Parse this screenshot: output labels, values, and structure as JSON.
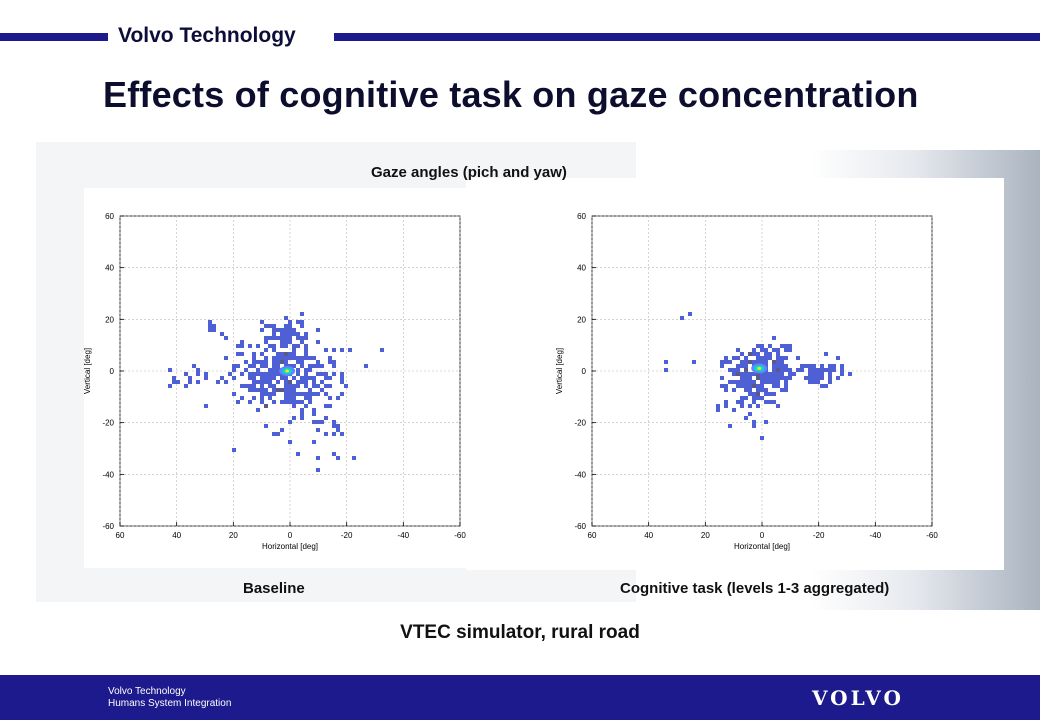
{
  "header": {
    "brand": "Volvo Technology"
  },
  "slide": {
    "title": "Effects of cognitive task on gaze concentration",
    "figure_title": "Gaze angles (pich and yaw)",
    "subtitle": "VTEC simulator, rural road"
  },
  "footer": {
    "line1": "Volvo Technology",
    "line2": "Humans System Integration",
    "logo": "VOLVO"
  },
  "colors": {
    "brand_blue": "#1c1a8c",
    "density_low": "#4f5fd4",
    "density_mid": "#5a5a8a",
    "density_peak": "#00e0c8"
  },
  "chart_data": [
    {
      "type": "heatmap",
      "title": "",
      "caption": "Baseline",
      "xlabel": "Horizontal [deg]",
      "ylabel": "Vertical [deg]",
      "xlim": [
        60,
        -60
      ],
      "ylim": [
        -60,
        60
      ],
      "xticks": [
        60,
        40,
        20,
        0,
        -20,
        -40,
        -60
      ],
      "yticks": [
        60,
        40,
        20,
        0,
        -20,
        -40,
        -60
      ],
      "tick_labels_x": [
        "60",
        "40",
        "20",
        "0",
        "-20",
        "-40",
        "-60"
      ],
      "tick_labels_y": [
        "60",
        "40",
        "20",
        "0",
        "-20",
        "-40",
        "-60"
      ],
      "grid": true,
      "peak": [
        1,
        0
      ],
      "clusters": [
        {
          "x": 2,
          "y": 0,
          "sx": 10,
          "sy": 7,
          "n": 260
        },
        {
          "x": 0,
          "y": -8,
          "sx": 9,
          "sy": 9,
          "n": 110
        },
        {
          "x": 2,
          "y": 14,
          "sx": 5,
          "sy": 3,
          "n": 40
        },
        {
          "x": 36,
          "y": -3,
          "sx": 4,
          "sy": 2,
          "n": 20
        },
        {
          "x": -14,
          "y": -28,
          "sx": 4,
          "sy": 6,
          "n": 14
        },
        {
          "x": 28,
          "y": 17,
          "sx": 2,
          "sy": 1,
          "n": 6
        }
      ]
    },
    {
      "type": "heatmap",
      "title": "",
      "caption": "Cognitive task (levels 1-3 aggregated)",
      "xlabel": "Horizontal [deg]",
      "ylabel": "Vertical [deg]",
      "xlim": [
        60,
        -60
      ],
      "ylim": [
        -60,
        60
      ],
      "xticks": [
        60,
        40,
        20,
        0,
        -20,
        -40,
        -60
      ],
      "yticks": [
        60,
        40,
        20,
        0,
        -20,
        -40,
        -60
      ],
      "tick_labels_x": [
        "60",
        "40",
        "20",
        "0",
        "-20",
        "-40",
        "-60"
      ],
      "tick_labels_y": [
        "60",
        "40",
        "20",
        "0",
        "-20",
        "-40",
        "-60"
      ],
      "grid": true,
      "peak": [
        1,
        1
      ],
      "clusters": [
        {
          "x": 0,
          "y": 0,
          "sx": 7,
          "sy": 5,
          "n": 220
        },
        {
          "x": 2,
          "y": -8,
          "sx": 5,
          "sy": 6,
          "n": 70
        },
        {
          "x": -20,
          "y": -1,
          "sx": 5,
          "sy": 2,
          "n": 50
        },
        {
          "x": 26,
          "y": 22,
          "sx": 1,
          "sy": 1,
          "n": 3
        },
        {
          "x": 34,
          "y": 3,
          "sx": 1,
          "sy": 1,
          "n": 2
        }
      ]
    }
  ]
}
